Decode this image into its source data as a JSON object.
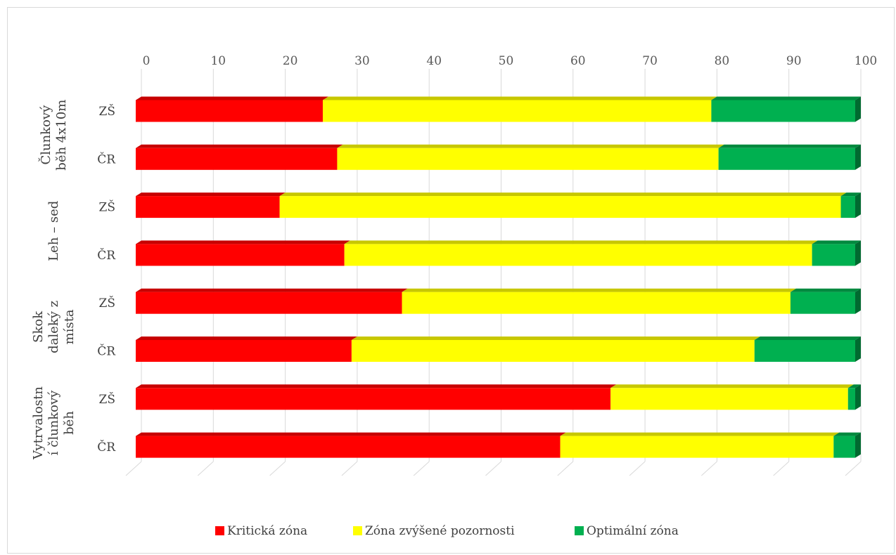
{
  "chart_data": {
    "type": "bar",
    "orientation": "horizontal",
    "stacked": true,
    "style": "3d",
    "xlim": [
      0,
      100
    ],
    "x_ticks": [
      0,
      10,
      20,
      30,
      40,
      50,
      60,
      70,
      80,
      90,
      100
    ],
    "x_axis_position": "top",
    "grid": true,
    "legend_position": "bottom",
    "groups": [
      {
        "label_lines": [
          "Člunkový",
          "běh 4x10m"
        ],
        "categories": [
          "ZŠ",
          "ČR"
        ]
      },
      {
        "label_lines": [
          "Leh – sed"
        ],
        "categories": [
          "ZŠ",
          "ČR"
        ]
      },
      {
        "label_lines": [
          "Skok",
          "daleký z",
          "místa"
        ],
        "categories": [
          "ZŠ",
          "ČR"
        ]
      },
      {
        "label_lines": [
          "Vytrvalostn",
          "í člunkový",
          "běh"
        ],
        "categories": [
          "ZŠ",
          "ČR"
        ]
      }
    ],
    "categories": [
      "ZŠ",
      "ČR",
      "ZŠ",
      "ČR",
      "ZŠ",
      "ČR",
      "ZŠ",
      "ČR"
    ],
    "series": [
      {
        "name": "Kritická zóna",
        "color": "#ff0000",
        "values": [
          26,
          28,
          20,
          29,
          37,
          30,
          66,
          59
        ]
      },
      {
        "name": "Zóna zvýšené pozornosti",
        "color": "#ffff00",
        "values": [
          54,
          53,
          78,
          65,
          54,
          56,
          33,
          38
        ]
      },
      {
        "name": "Optimální zóna",
        "color": "#00b050",
        "values": [
          20,
          19,
          2,
          6,
          9,
          14,
          1,
          3
        ]
      }
    ]
  }
}
